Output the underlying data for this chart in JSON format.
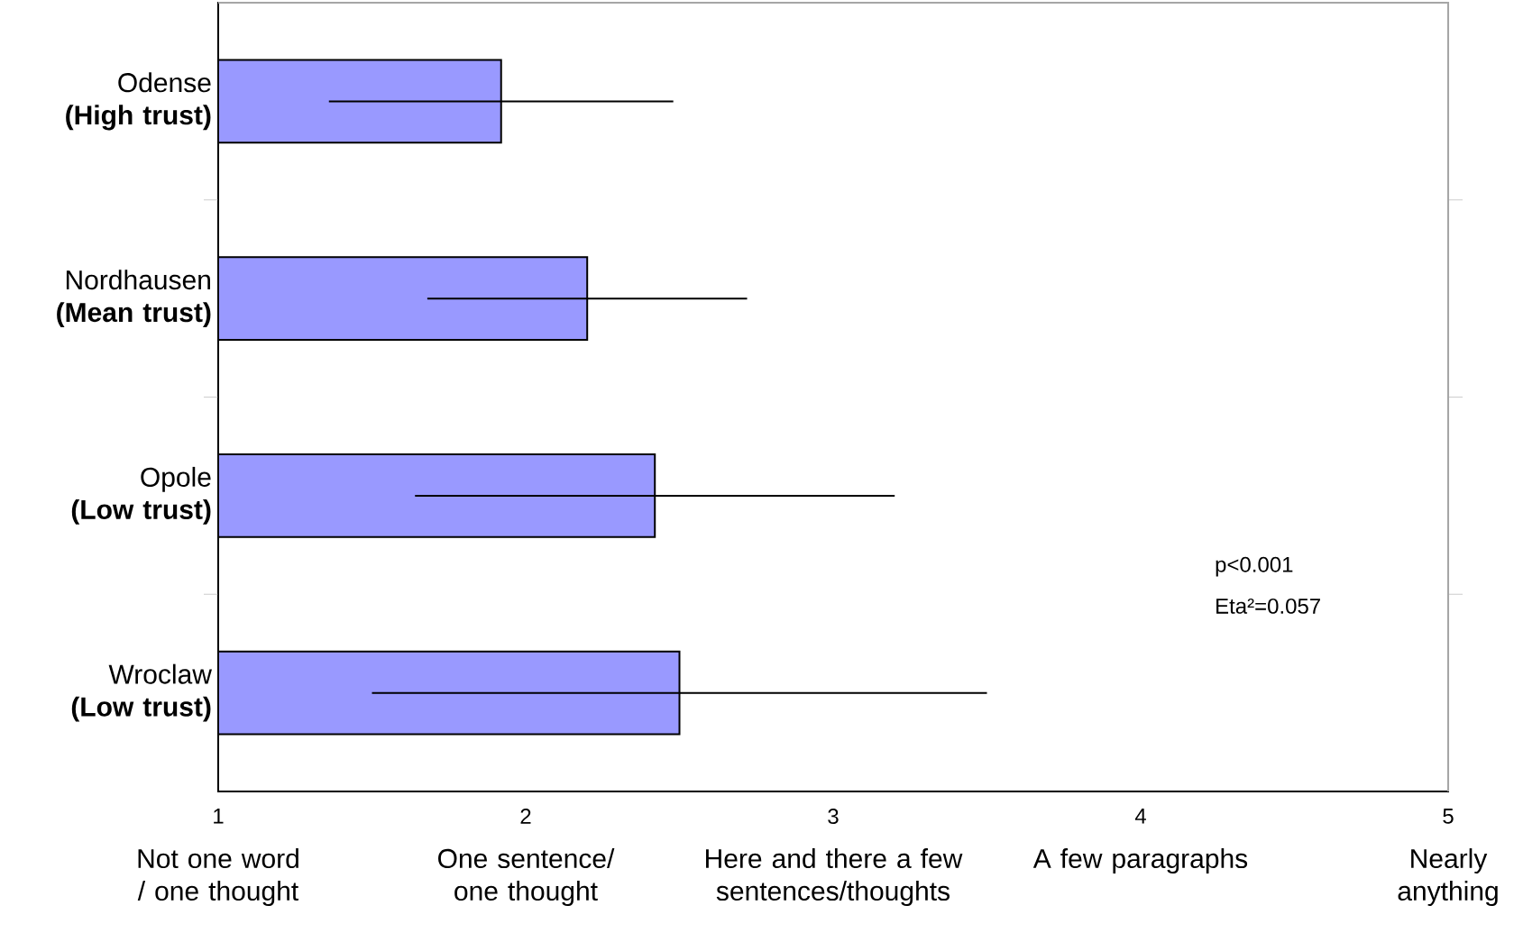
{
  "chart_data": {
    "type": "bar",
    "orientation": "horizontal",
    "categories": [
      "Odense **(High trust)**",
      "Nordhausen **(Mean trust)**",
      "Opole **(Low trust)**",
      "Wroclaw **(Low trust)**"
    ],
    "values": [
      1.92,
      2.2,
      2.42,
      2.5
    ],
    "errors": [
      0.56,
      0.52,
      0.78,
      1.0
    ],
    "color": "#9999ff",
    "xlim": [
      1,
      5
    ],
    "xticks": [
      1,
      2,
      3,
      4,
      5
    ],
    "annotations": [
      "Not  one word / one thought",
      "One sentence/ one thought",
      "Here and there a few sentences/thoughts",
      "A few paragraphs",
      "Nearly anything",
      "p<0.001",
      "Eta²=0.057"
    ]
  }
}
